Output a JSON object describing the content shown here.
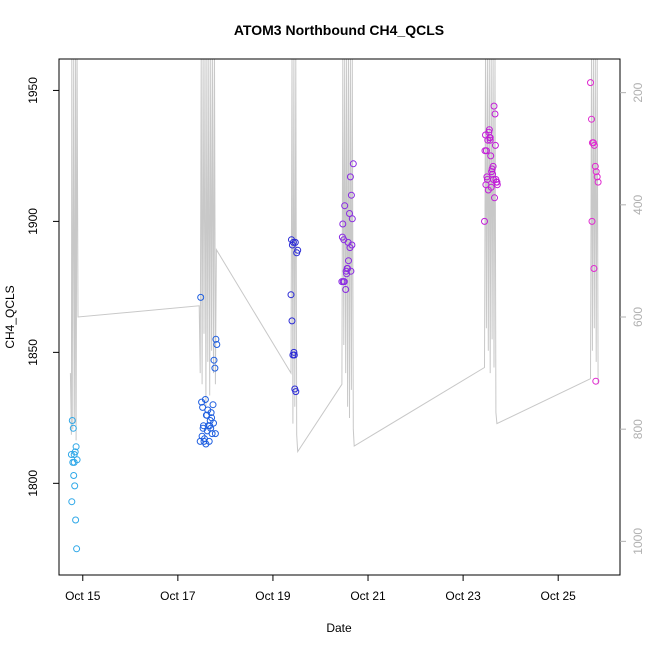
{
  "chart_data": {
    "type": "scatter",
    "title": "ATOM3 Northbound CH4_QCLS",
    "xlabel": "Date",
    "ylabel": "CH4_QCLS",
    "x_ticks": [
      "Oct 15",
      "Oct 17",
      "Oct 19",
      "Oct 21",
      "Oct 23",
      "Oct 25"
    ],
    "x_tick_days": [
      15,
      17,
      19,
      21,
      23,
      25
    ],
    "xlim": [
      14.5,
      26.3
    ],
    "ylim": [
      1765,
      1962
    ],
    "y_ticks": [
      1800,
      1850,
      1900,
      1950
    ],
    "right_axis": {
      "label": "",
      "ticks": [
        200,
        400,
        600,
        800,
        1000
      ],
      "lim": [
        1060,
        140
      ],
      "color": "#b0b0b0"
    },
    "colors": {
      "background": "#ffffff",
      "axis": "#000000",
      "profile_line": "#c8c8c8",
      "point_palette": [
        "#2fa8e8",
        "#1f5fe0",
        "#2b2bd6",
        "#8a2be2",
        "#c21ed8",
        "#e02ad0"
      ]
    },
    "profile_line": {
      "name": "",
      "days": [
        14.74,
        14.76,
        14.77,
        14.79,
        14.81,
        14.83,
        14.85,
        14.86,
        14.88,
        14.9,
        17.45,
        17.47,
        17.49,
        17.51,
        17.53,
        17.55,
        17.57,
        17.59,
        17.61,
        17.63,
        17.65,
        17.67,
        17.69,
        17.71,
        17.73,
        17.75,
        17.77,
        17.79,
        17.81,
        19.38,
        19.4,
        19.42,
        19.44,
        19.46,
        19.48,
        19.5,
        19.52,
        20.45,
        20.47,
        20.49,
        20.51,
        20.53,
        20.55,
        20.57,
        20.59,
        20.61,
        20.63,
        20.65,
        20.67,
        20.69,
        20.71,
        23.45,
        23.47,
        23.49,
        23.51,
        23.53,
        23.55,
        23.57,
        23.59,
        23.61,
        23.63,
        23.65,
        23.67,
        23.69,
        23.71,
        25.68,
        25.7,
        25.72,
        25.74,
        25.76,
        25.78,
        25.8,
        25.82,
        25.84
      ],
      "values": [
        700,
        810,
        140,
        800,
        140,
        790,
        140,
        820,
        140,
        600,
        580,
        700,
        140,
        720,
        140,
        630,
        140,
        760,
        140,
        680,
        140,
        740,
        140,
        660,
        140,
        700,
        140,
        720,
        480,
        700,
        140,
        790,
        140,
        760,
        140,
        810,
        840,
        720,
        140,
        650,
        140,
        700,
        140,
        760,
        140,
        780,
        140,
        730,
        140,
        800,
        830,
        690,
        140,
        620,
        140,
        660,
        140,
        700,
        140,
        640,
        140,
        690,
        140,
        770,
        790,
        710,
        140,
        660,
        140,
        620,
        140,
        680,
        140,
        720
      ]
    },
    "series": [
      {
        "color": "#2fa8e8",
        "x": [
          14.78,
          14.8,
          14.82,
          14.84,
          14.86,
          14.88,
          14.76,
          14.79,
          14.81,
          14.83,
          14.85,
          14.87,
          14.77,
          14.82
        ],
        "y": [
          1824,
          1821,
          1808,
          1812,
          1814,
          1809,
          1811,
          1808,
          1803,
          1799,
          1786,
          1775,
          1793,
          1811
        ]
      },
      {
        "color": "#1f5fe0",
        "x": [
          17.48,
          17.5,
          17.52,
          17.54,
          17.56,
          17.58,
          17.6,
          17.62,
          17.64,
          17.66,
          17.68,
          17.7,
          17.72,
          17.74,
          17.76,
          17.78,
          17.8,
          17.82,
          17.47,
          17.51,
          17.55,
          17.59,
          17.63,
          17.67,
          17.71,
          17.75,
          17.53,
          17.61,
          17.69,
          17.79
        ],
        "y": [
          1871,
          1831,
          1829,
          1822,
          1817,
          1832,
          1826,
          1820,
          1822,
          1816,
          1824,
          1827,
          1819,
          1830,
          1847,
          1844,
          1855,
          1853,
          1816,
          1818,
          1816,
          1815,
          1828,
          1822,
          1825,
          1823,
          1821,
          1826,
          1821,
          1819
        ]
      },
      {
        "color": "#2b2bd6",
        "x": [
          19.38,
          19.4,
          19.42,
          19.44,
          19.46,
          19.48,
          19.5,
          19.52,
          19.39,
          19.41,
          19.43,
          19.45,
          19.47
        ],
        "y": [
          1872,
          1862,
          1849,
          1850,
          1836,
          1835,
          1888,
          1889,
          1893,
          1891,
          1892,
          1849,
          1892
        ]
      },
      {
        "color": "#8a2be2",
        "x": [
          20.45,
          20.47,
          20.49,
          20.51,
          20.53,
          20.55,
          20.57,
          20.59,
          20.61,
          20.63,
          20.65,
          20.67,
          20.69,
          20.46,
          20.5,
          20.54,
          20.58,
          20.62,
          20.66,
          20.48,
          20.56,
          20.64
        ],
        "y": [
          1877,
          1899,
          1893,
          1906,
          1874,
          1880,
          1882,
          1885,
          1903,
          1917,
          1910,
          1901,
          1922,
          1894,
          1877,
          1881,
          1892,
          1890,
          1891,
          1877,
          1882,
          1881
        ]
      },
      {
        "color": "#c21ed8",
        "x": [
          23.45,
          23.47,
          23.49,
          23.51,
          23.53,
          23.55,
          23.57,
          23.59,
          23.61,
          23.63,
          23.65,
          23.67,
          23.69,
          23.71,
          23.46,
          23.48,
          23.5,
          23.52,
          23.54,
          23.56,
          23.58,
          23.6,
          23.62,
          23.64,
          23.66,
          23.68,
          23.7,
          23.72,
          23.57
        ],
        "y": [
          1900,
          1933,
          1927,
          1916,
          1912,
          1935,
          1932,
          1913,
          1920,
          1921,
          1944,
          1941,
          1916,
          1915,
          1927,
          1914,
          1917,
          1931,
          1934,
          1932,
          1925,
          1919,
          1918,
          1916,
          1909,
          1929,
          1915,
          1914,
          1931
        ]
      },
      {
        "color": "#e02ad0",
        "x": [
          25.68,
          25.7,
          25.72,
          25.74,
          25.76,
          25.78,
          25.8,
          25.82,
          25.84,
          25.71,
          25.75,
          25.79
        ],
        "y": [
          1953,
          1939,
          1930,
          1930,
          1929,
          1921,
          1919,
          1917,
          1915,
          1900,
          1882,
          1839
        ]
      }
    ]
  }
}
